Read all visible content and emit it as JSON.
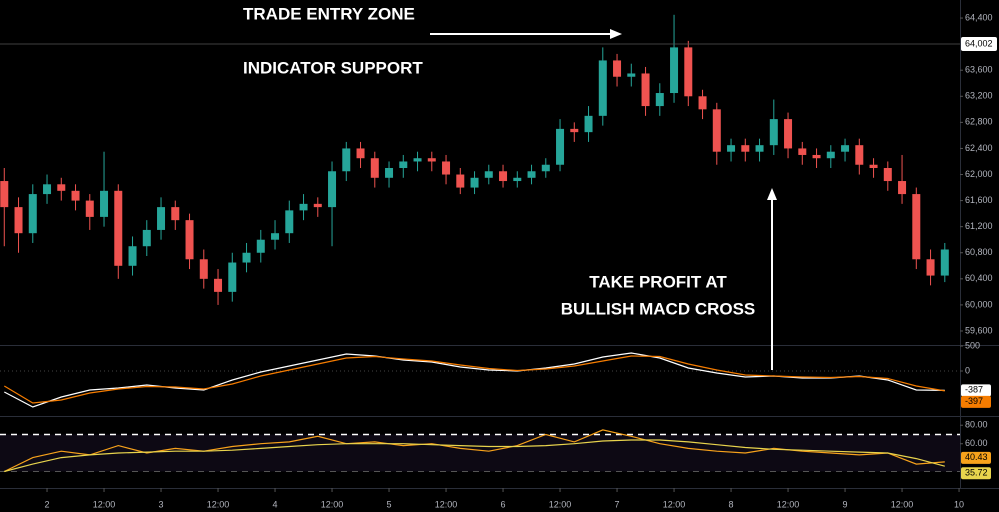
{
  "chart_data": [
    {
      "type": "candlestick",
      "annotations": [
        "TRADE ENTRY ZONE",
        "INDICATOR SUPPORT",
        "TAKE PROFIT AT",
        "BULLISH MACD CROSS"
      ],
      "up_color": "#26a69a",
      "down_color": "#ef5350",
      "xlim": [
        -9.9,
        192.2
      ],
      "x": [
        -9,
        -6,
        -3,
        0,
        3,
        6,
        9,
        12,
        15,
        18,
        21,
        24,
        27,
        30,
        33,
        36,
        39,
        42,
        45,
        48,
        51,
        54,
        57,
        60,
        63,
        66,
        69,
        72,
        75,
        78,
        81,
        84,
        87,
        90,
        93,
        96,
        99,
        102,
        105,
        108,
        111,
        114,
        117,
        120,
        123,
        126,
        129,
        132,
        135,
        138,
        141,
        144,
        147,
        150,
        153,
        156,
        159,
        162,
        165,
        168,
        171,
        174,
        177,
        180,
        183,
        186,
        189
      ],
      "open": [
        61900,
        61500,
        61100,
        61700,
        61850,
        61750,
        61600,
        61350,
        61750,
        60600,
        60900,
        61150,
        61500,
        61300,
        60700,
        60400,
        60200,
        60650,
        60800,
        61000,
        61100,
        61450,
        61550,
        61500,
        62050,
        62400,
        62250,
        61950,
        62100,
        62200,
        62250,
        62200,
        62000,
        61800,
        61950,
        62050,
        61900,
        61950,
        62050,
        62150,
        62700,
        62650,
        62900,
        63750,
        63500,
        63550,
        63050,
        63250,
        63950,
        63200,
        63000,
        62350,
        62450,
        62350,
        62450,
        62850,
        62400,
        62300,
        62250,
        62350,
        62450,
        62150,
        62100,
        61900,
        61700,
        60700,
        60450
      ],
      "high": [
        62100,
        61650,
        61850,
        62000,
        61950,
        61850,
        61700,
        62350,
        61850,
        61050,
        61300,
        61650,
        61600,
        61400,
        60850,
        60550,
        60800,
        60950,
        61150,
        61300,
        61600,
        61700,
        61650,
        62200,
        62500,
        62500,
        62350,
        62200,
        62300,
        62350,
        62350,
        62300,
        62100,
        62050,
        62150,
        62150,
        62050,
        62150,
        62250,
        62850,
        62800,
        63050,
        63950,
        63850,
        63700,
        63650,
        63400,
        64450,
        64050,
        63300,
        63100,
        62550,
        62550,
        62550,
        63150,
        62950,
        62500,
        62400,
        62450,
        62550,
        62550,
        62250,
        62200,
        62300,
        61800,
        60850,
        60950
      ],
      "low": [
        60900,
        60800,
        60950,
        61550,
        61600,
        61450,
        61150,
        61200,
        60400,
        60450,
        60750,
        61000,
        61150,
        60550,
        60250,
        60000,
        60050,
        60500,
        60650,
        60850,
        60950,
        61300,
        61350,
        60900,
        61900,
        62100,
        61800,
        61800,
        61950,
        62050,
        62050,
        61850,
        61700,
        61700,
        61850,
        61800,
        61800,
        61850,
        61950,
        62050,
        62500,
        62500,
        62750,
        63350,
        63350,
        62900,
        62900,
        63100,
        63050,
        62850,
        62150,
        62200,
        62200,
        62200,
        62300,
        62250,
        62150,
        62100,
        62100,
        62200,
        62000,
        61950,
        61750,
        61550,
        60550,
        60300,
        60350
      ],
      "close": [
        61500,
        61100,
        61700,
        61850,
        61750,
        61600,
        61350,
        61750,
        60600,
        60900,
        61150,
        61500,
        61300,
        60700,
        60400,
        60200,
        60650,
        60800,
        61000,
        61100,
        61450,
        61550,
        61500,
        62050,
        62400,
        62250,
        61950,
        62100,
        62200,
        62250,
        62200,
        62000,
        61800,
        61950,
        62050,
        61900,
        61950,
        62050,
        62150,
        62700,
        62650,
        62900,
        63750,
        63500,
        63550,
        63050,
        63250,
        63950,
        63200,
        63000,
        62350,
        62450,
        62350,
        62450,
        62850,
        62400,
        62300,
        62250,
        62350,
        62450,
        62150,
        62100,
        61900,
        61700,
        60700,
        60450,
        60850
      ],
      "ylim": [
        59385,
        64677
      ],
      "yticks": [
        {
          "value": 64400,
          "label": "64,400"
        },
        {
          "value": 63600,
          "label": "63,600"
        },
        {
          "value": 63200,
          "label": "63,200"
        },
        {
          "value": 62800,
          "label": "62,800"
        },
        {
          "value": 62400,
          "label": "62,400"
        },
        {
          "value": 62000,
          "label": "62,000"
        },
        {
          "value": 61600,
          "label": "61,600"
        },
        {
          "value": 61200,
          "label": "61,200"
        },
        {
          "value": 60800,
          "label": "60,800"
        },
        {
          "value": 60400,
          "label": "60,400"
        },
        {
          "value": 60000,
          "label": "60,000"
        },
        {
          "value": 59600,
          "label": "59,600"
        }
      ],
      "price_marker": {
        "value": 64002,
        "label": "64,002"
      }
    },
    {
      "type": "line",
      "xlim": [
        -9.9,
        192.2
      ],
      "x": [
        -9,
        -3,
        3,
        9,
        15,
        21,
        27,
        33,
        39,
        45,
        51,
        57,
        63,
        69,
        75,
        81,
        87,
        93,
        99,
        105,
        111,
        117,
        123,
        129,
        135,
        141,
        147,
        153,
        159,
        165,
        171,
        177,
        183,
        189
      ],
      "series": [
        {
          "color": "#ffffff",
          "values": [
            -420,
            -720,
            -520,
            -380,
            -340,
            -280,
            -340,
            -380,
            -180,
            -20,
            100,
            220,
            340,
            300,
            220,
            180,
            80,
            20,
            0,
            60,
            140,
            280,
            360,
            260,
            60,
            -40,
            -120,
            -100,
            -140,
            -140,
            -100,
            -180,
            -380,
            -387
          ]
        },
        {
          "color": "#f57c00",
          "values": [
            -300,
            -640,
            -580,
            -440,
            -360,
            -310,
            -320,
            -360,
            -260,
            -100,
            20,
            140,
            260,
            290,
            240,
            200,
            120,
            50,
            10,
            40,
            100,
            200,
            300,
            290,
            140,
            20,
            -80,
            -100,
            -120,
            -130,
            -110,
            -150,
            -300,
            -397
          ]
        }
      ],
      "ylim": [
        -880,
        520
      ],
      "yticks": [
        500,
        0
      ]
    },
    {
      "type": "line",
      "xlim": [
        -9.9,
        192.2
      ],
      "x": [
        -9,
        -3,
        3,
        9,
        15,
        21,
        27,
        33,
        39,
        45,
        51,
        57,
        63,
        69,
        75,
        81,
        87,
        93,
        99,
        105,
        111,
        117,
        123,
        129,
        135,
        141,
        147,
        153,
        159,
        165,
        171,
        177,
        183,
        189
      ],
      "series": [
        {
          "color": "#f7a21b",
          "values": [
            30,
            45,
            52,
            48,
            58,
            50,
            55,
            52,
            57,
            60,
            62,
            68,
            60,
            62,
            58,
            60,
            55,
            52,
            58,
            70,
            62,
            75,
            68,
            60,
            55,
            52,
            50,
            55,
            52,
            50,
            48,
            50,
            38,
            40.43
          ]
        },
        {
          "color": "#e8d44d",
          "values": [
            30,
            38,
            45,
            48,
            50,
            51,
            52,
            52,
            53,
            55,
            57,
            59,
            60,
            60,
            60,
            59,
            58,
            57,
            57,
            58,
            60,
            63,
            64,
            64,
            62,
            59,
            56,
            54,
            53,
            52,
            51,
            50,
            44,
            35.72
          ]
        }
      ],
      "ylim": [
        13.3,
        87.8
      ],
      "yticks": [
        {
          "value": 80,
          "label": "80.00"
        },
        {
          "value": 60,
          "label": "60.00"
        }
      ],
      "bands": [
        70,
        30
      ],
      "xticks": [
        {
          "value": 0,
          "label": "2"
        },
        {
          "value": 12,
          "label": "12:00"
        },
        {
          "value": 24,
          "label": "3"
        },
        {
          "value": 36,
          "label": "12:00"
        },
        {
          "value": 48,
          "label": "4"
        },
        {
          "value": 60,
          "label": "12:00"
        },
        {
          "value": 72,
          "label": "5"
        },
        {
          "value": 84,
          "label": "12:00"
        },
        {
          "value": 96,
          "label": "6"
        },
        {
          "value": 108,
          "label": "12:00"
        },
        {
          "value": 120,
          "label": "7"
        },
        {
          "value": 132,
          "label": "12:00"
        },
        {
          "value": 144,
          "label": "8"
        },
        {
          "value": 156,
          "label": "12:00"
        },
        {
          "value": 168,
          "label": "9"
        },
        {
          "value": 180,
          "label": "12:00"
        },
        {
          "value": 192,
          "label": "10"
        }
      ]
    }
  ]
}
